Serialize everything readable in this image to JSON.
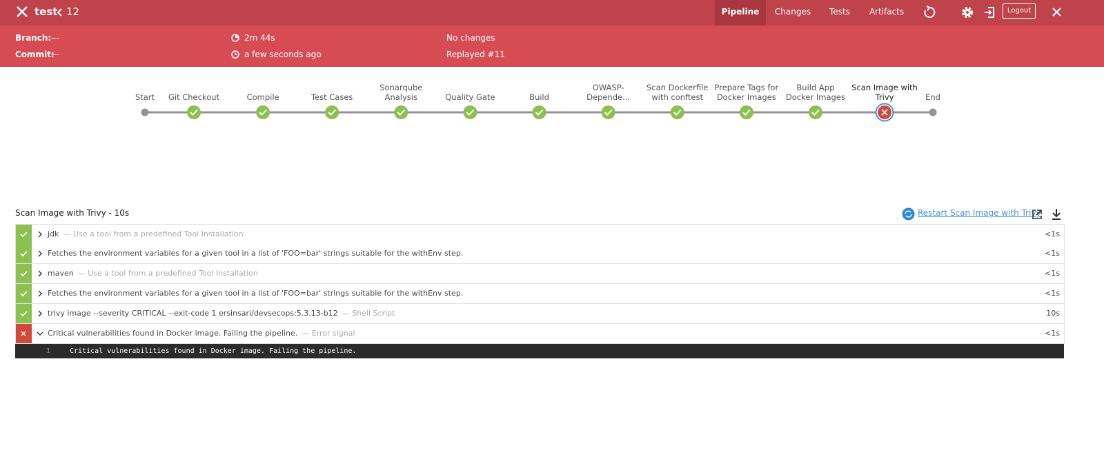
{
  "header": {
    "title": "test",
    "run": "12",
    "tabs": [
      "Pipeline",
      "Changes",
      "Tests",
      "Artifacts"
    ],
    "active_tab": 0,
    "logout": "Logout"
  },
  "summary": {
    "branch_label": "Branch:",
    "branch": "—",
    "commit_label": "Commit:",
    "commit": "—",
    "duration": "2m 44s",
    "time": "a few seconds ago",
    "changes": "No changes",
    "replayed": "Replayed #11"
  },
  "stages": [
    {
      "label": "Start",
      "status": "node"
    },
    {
      "label": "Git Checkout",
      "status": "success"
    },
    {
      "label": "Compile",
      "status": "success"
    },
    {
      "label": "Test Cases",
      "status": "success"
    },
    {
      "label": "Sonarqube Analysis",
      "status": "success"
    },
    {
      "label": "Quality Gate",
      "status": "success"
    },
    {
      "label": "Build",
      "status": "success"
    },
    {
      "label": "OWASP-Depende...",
      "status": "success"
    },
    {
      "label": "Scan Dockerfile with conftest",
      "status": "success"
    },
    {
      "label": "Prepare Tags for Docker Images",
      "status": "success"
    },
    {
      "label": "Build App Docker Images",
      "status": "success"
    },
    {
      "label": "Scan Image with Trivy",
      "status": "failed",
      "selected": true
    },
    {
      "label": "End",
      "status": "node"
    }
  ],
  "step_panel": {
    "title": "Scan Image with Trivy - 10s",
    "restart": "Restart Scan Image with Trivy",
    "steps": [
      {
        "name": "jdk",
        "description": "— Use a tool from a predefined Tool Installation",
        "duration": "<1s",
        "status": "success",
        "expanded": false
      },
      {
        "name": "Fetches the environment variables for a given tool in a list of 'FOO=bar' strings suitable for the withEnv step.",
        "duration": "<1s",
        "status": "success",
        "expanded": false
      },
      {
        "name": "maven",
        "description": "— Use a tool from a predefined Tool Installation",
        "duration": "<1s",
        "status": "success",
        "expanded": false
      },
      {
        "name": "Fetches the environment variables for a given tool in a list of 'FOO=bar' strings suitable for the withEnv step.",
        "duration": "<1s",
        "status": "success",
        "expanded": false
      },
      {
        "name": "trivy image --severity CRITICAL --exit-code 1 ersinsari/devsecops:5.3.13-b12",
        "description": "— Shell Script",
        "duration": "10s",
        "status": "success",
        "expanded": false
      },
      {
        "name": "Critical vulnerabilities found in Docker image. Failing the pipeline.",
        "description": "— Error signal",
        "duration": "<1s",
        "status": "failed",
        "expanded": true
      }
    ],
    "log": [
      {
        "line": "1",
        "text": "Critical vulnerabilities found in Docker image. Failing the pipeline."
      }
    ]
  }
}
